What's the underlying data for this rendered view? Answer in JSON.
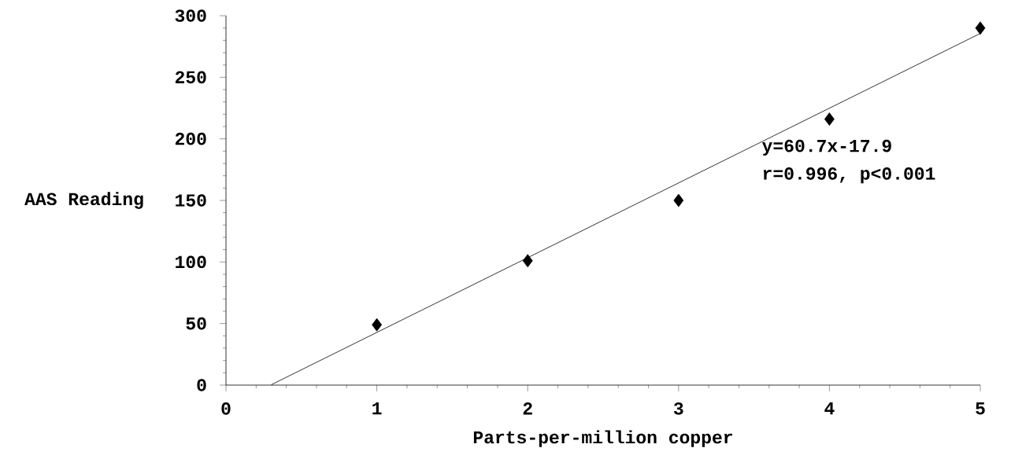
{
  "chart_data": {
    "type": "scatter",
    "xlabel": "Parts-per-million copper",
    "ylabel": "AAS Reading",
    "xlim": [
      0,
      5
    ],
    "xticks": [
      0,
      1,
      2,
      3,
      4,
      5
    ],
    "ylim": [
      0,
      300
    ],
    "yticks": [
      0,
      50,
      100,
      150,
      200,
      250,
      300
    ],
    "series": [
      {
        "color": "#000000",
        "marker": "diamond",
        "x": [
          1,
          2,
          3,
          4,
          5
        ],
        "values": [
          49,
          101,
          150,
          216,
          290
        ]
      },
      {
        "type": "line",
        "color": "#000000",
        "marker": "none",
        "line_style": "solid",
        "x": [
          0.3,
          5
        ],
        "values": [
          0.3,
          285.6
        ]
      }
    ],
    "annotations": [
      "y=60.7x-17.9",
      "r=0.996, p<0.001"
    ],
    "grid": false
  }
}
